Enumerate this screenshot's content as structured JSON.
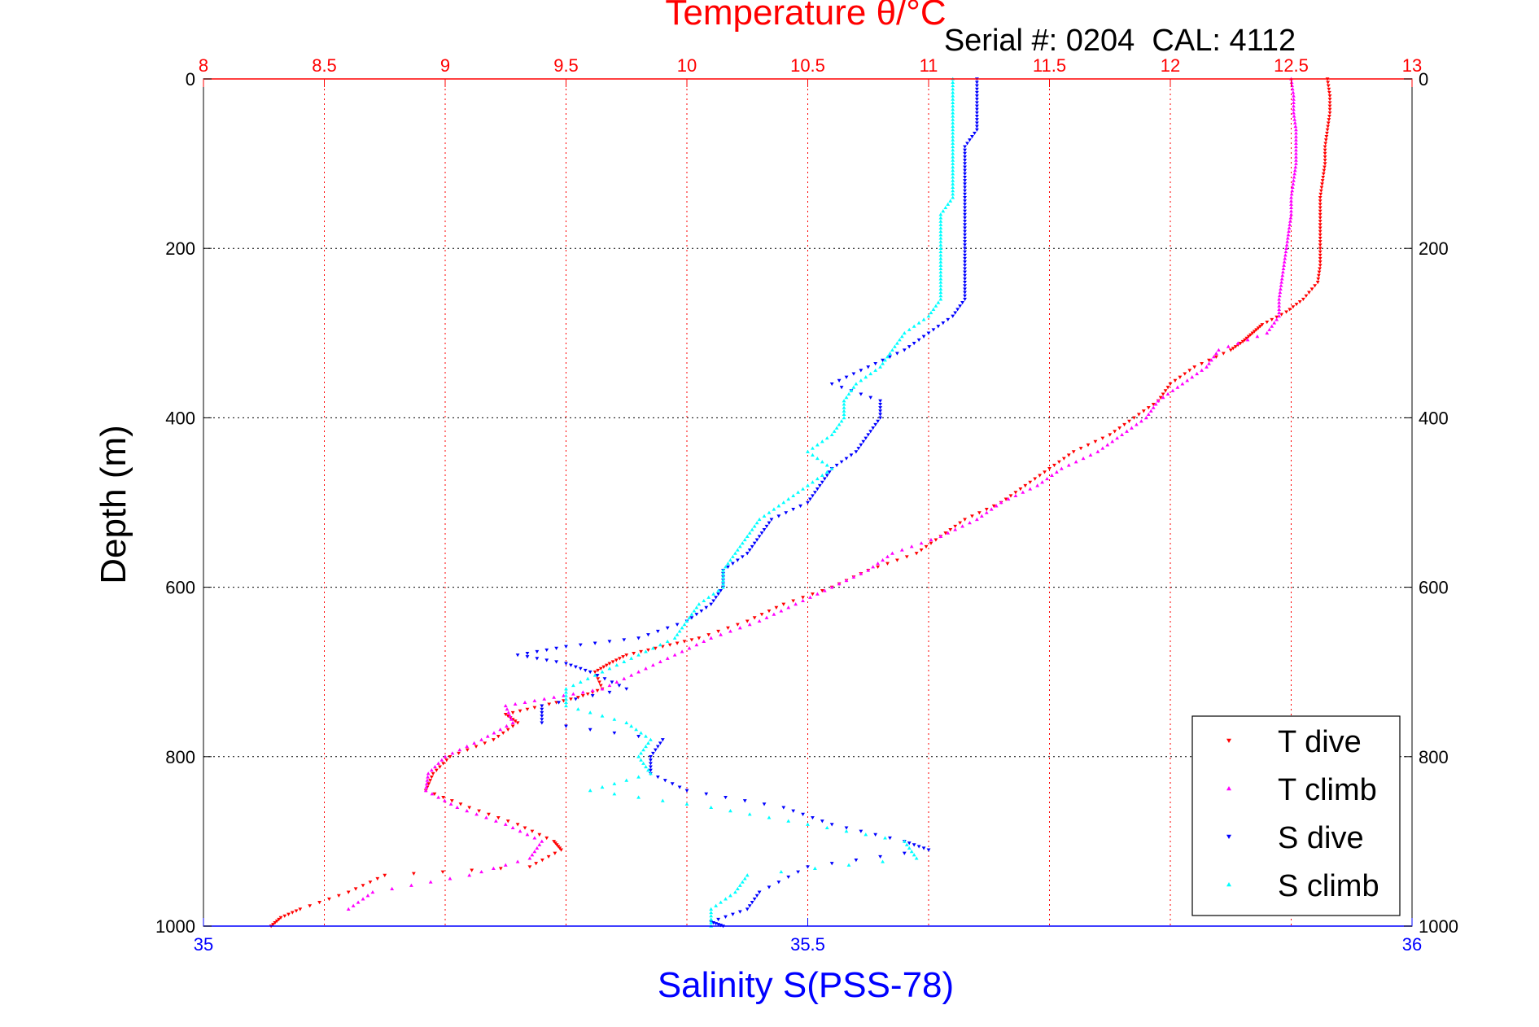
{
  "chart_data": {
    "type": "scatter",
    "title": "Temperature θ/°C",
    "subtitle": "Serial #: 0204  CAL: 4112",
    "ylabel": "Depth (m)",
    "xlabel": "Salinity S(PSS-78)",
    "y": {
      "range": [
        0,
        1000
      ],
      "reversed": true,
      "ticks": [
        0,
        200,
        400,
        600,
        800,
        1000
      ]
    },
    "x_top": {
      "range": [
        8,
        13
      ],
      "ticks": [
        8,
        8.5,
        9,
        9.5,
        10,
        10.5,
        11,
        11.5,
        12,
        12.5,
        13
      ]
    },
    "x_bottom": {
      "range": [
        35,
        36
      ],
      "ticks": [
        35,
        35.5,
        36
      ]
    },
    "grid": true,
    "legend_position": "bottom-right",
    "colors": {
      "temperature_axis": "#ff0000",
      "salinity_axis": "#0000ff",
      "grid": "#000000"
    },
    "series": [
      {
        "name": "T dive",
        "axis": "temperature",
        "color": "#ff0000",
        "marker": "triangle-down",
        "points": [
          [
            0,
            12.65
          ],
          [
            20,
            12.66
          ],
          [
            40,
            12.66
          ],
          [
            60,
            12.65
          ],
          [
            80,
            12.64
          ],
          [
            100,
            12.64
          ],
          [
            120,
            12.63
          ],
          [
            140,
            12.62
          ],
          [
            160,
            12.62
          ],
          [
            180,
            12.62
          ],
          [
            200,
            12.62
          ],
          [
            220,
            12.62
          ],
          [
            240,
            12.61
          ],
          [
            260,
            12.55
          ],
          [
            275,
            12.48
          ],
          [
            290,
            12.38
          ],
          [
            300,
            12.34
          ],
          [
            310,
            12.3
          ],
          [
            320,
            12.25
          ],
          [
            340,
            12.1
          ],
          [
            360,
            12.0
          ],
          [
            380,
            11.95
          ],
          [
            400,
            11.85
          ],
          [
            420,
            11.75
          ],
          [
            440,
            11.6
          ],
          [
            460,
            11.5
          ],
          [
            480,
            11.4
          ],
          [
            500,
            11.3
          ],
          [
            520,
            11.15
          ],
          [
            540,
            11.05
          ],
          [
            560,
            10.95
          ],
          [
            580,
            10.75
          ],
          [
            600,
            10.6
          ],
          [
            620,
            10.4
          ],
          [
            640,
            10.25
          ],
          [
            660,
            10.05
          ],
          [
            670,
            9.9
          ],
          [
            680,
            9.75
          ],
          [
            690,
            9.68
          ],
          [
            700,
            9.62
          ],
          [
            720,
            9.65
          ],
          [
            730,
            9.55
          ],
          [
            740,
            9.4
          ],
          [
            750,
            9.25
          ],
          [
            760,
            9.3
          ],
          [
            780,
            9.2
          ],
          [
            800,
            9.02
          ],
          [
            820,
            8.95
          ],
          [
            840,
            8.92
          ],
          [
            860,
            9.1
          ],
          [
            880,
            9.3
          ],
          [
            900,
            9.45
          ],
          [
            910,
            9.48
          ],
          [
            930,
            9.35
          ],
          [
            940,
            8.75
          ],
          [
            960,
            8.6
          ],
          [
            980,
            8.4
          ],
          [
            990,
            8.32
          ],
          [
            1000,
            8.28
          ]
        ]
      },
      {
        "name": "T climb",
        "axis": "temperature",
        "color": "#ff00ff",
        "marker": "triangle-up",
        "points": [
          [
            0,
            12.5
          ],
          [
            20,
            12.51
          ],
          [
            40,
            12.51
          ],
          [
            60,
            12.52
          ],
          [
            80,
            12.52
          ],
          [
            100,
            12.52
          ],
          [
            120,
            12.51
          ],
          [
            140,
            12.5
          ],
          [
            160,
            12.5
          ],
          [
            180,
            12.49
          ],
          [
            200,
            12.48
          ],
          [
            220,
            12.47
          ],
          [
            240,
            12.46
          ],
          [
            260,
            12.45
          ],
          [
            280,
            12.45
          ],
          [
            300,
            12.4
          ],
          [
            320,
            12.2
          ],
          [
            340,
            12.15
          ],
          [
            360,
            12.05
          ],
          [
            380,
            11.95
          ],
          [
            400,
            11.9
          ],
          [
            420,
            11.8
          ],
          [
            440,
            11.7
          ],
          [
            460,
            11.55
          ],
          [
            480,
            11.45
          ],
          [
            500,
            11.3
          ],
          [
            520,
            11.2
          ],
          [
            540,
            11.05
          ],
          [
            560,
            10.85
          ],
          [
            580,
            10.75
          ],
          [
            600,
            10.6
          ],
          [
            620,
            10.45
          ],
          [
            640,
            10.3
          ],
          [
            660,
            10.1
          ],
          [
            680,
            9.95
          ],
          [
            700,
            9.8
          ],
          [
            720,
            9.65
          ],
          [
            730,
            9.45
          ],
          [
            740,
            9.25
          ],
          [
            760,
            9.28
          ],
          [
            780,
            9.15
          ],
          [
            800,
            9.0
          ],
          [
            820,
            8.93
          ],
          [
            840,
            8.92
          ],
          [
            860,
            9.05
          ],
          [
            880,
            9.25
          ],
          [
            900,
            9.4
          ],
          [
            920,
            9.35
          ],
          [
            940,
            9.1
          ],
          [
            960,
            8.7
          ],
          [
            980,
            8.6
          ]
        ]
      },
      {
        "name": "S dive",
        "axis": "salinity",
        "color": "#0000ff",
        "marker": "triangle-down",
        "points": [
          [
            0,
            35.64
          ],
          [
            20,
            35.64
          ],
          [
            40,
            35.64
          ],
          [
            60,
            35.64
          ],
          [
            80,
            35.63
          ],
          [
            100,
            35.63
          ],
          [
            120,
            35.63
          ],
          [
            140,
            35.63
          ],
          [
            160,
            35.63
          ],
          [
            180,
            35.63
          ],
          [
            200,
            35.63
          ],
          [
            220,
            35.63
          ],
          [
            240,
            35.63
          ],
          [
            260,
            35.63
          ],
          [
            280,
            35.62
          ],
          [
            300,
            35.6
          ],
          [
            320,
            35.58
          ],
          [
            340,
            35.55
          ],
          [
            360,
            35.52
          ],
          [
            380,
            35.56
          ],
          [
            400,
            35.56
          ],
          [
            420,
            35.55
          ],
          [
            440,
            35.54
          ],
          [
            460,
            35.52
          ],
          [
            480,
            35.51
          ],
          [
            500,
            35.5
          ],
          [
            520,
            35.47
          ],
          [
            540,
            35.46
          ],
          [
            560,
            35.45
          ],
          [
            580,
            35.43
          ],
          [
            600,
            35.43
          ],
          [
            620,
            35.42
          ],
          [
            640,
            35.4
          ],
          [
            660,
            35.36
          ],
          [
            670,
            35.3
          ],
          [
            680,
            35.26
          ],
          [
            690,
            35.3
          ],
          [
            700,
            35.32
          ],
          [
            720,
            35.35
          ],
          [
            740,
            35.28
          ],
          [
            760,
            35.28
          ],
          [
            780,
            35.38
          ],
          [
            800,
            35.37
          ],
          [
            820,
            35.37
          ],
          [
            840,
            35.4
          ],
          [
            860,
            35.48
          ],
          [
            880,
            35.52
          ],
          [
            900,
            35.58
          ],
          [
            910,
            35.6
          ],
          [
            930,
            35.5
          ],
          [
            960,
            35.46
          ],
          [
            980,
            35.45
          ],
          [
            995,
            35.42
          ],
          [
            1000,
            35.43
          ]
        ]
      },
      {
        "name": "S climb",
        "axis": "salinity",
        "color": "#00ffff",
        "marker": "triangle-up",
        "points": [
          [
            0,
            35.62
          ],
          [
            20,
            35.62
          ],
          [
            40,
            35.62
          ],
          [
            60,
            35.62
          ],
          [
            80,
            35.62
          ],
          [
            100,
            35.62
          ],
          [
            120,
            35.62
          ],
          [
            140,
            35.62
          ],
          [
            160,
            35.61
          ],
          [
            180,
            35.61
          ],
          [
            200,
            35.61
          ],
          [
            220,
            35.61
          ],
          [
            240,
            35.61
          ],
          [
            260,
            35.61
          ],
          [
            280,
            35.6
          ],
          [
            300,
            35.58
          ],
          [
            320,
            35.57
          ],
          [
            340,
            35.56
          ],
          [
            360,
            35.54
          ],
          [
            380,
            35.53
          ],
          [
            400,
            35.53
          ],
          [
            420,
            35.52
          ],
          [
            440,
            35.5
          ],
          [
            460,
            35.52
          ],
          [
            480,
            35.5
          ],
          [
            500,
            35.48
          ],
          [
            520,
            35.46
          ],
          [
            540,
            35.45
          ],
          [
            560,
            35.44
          ],
          [
            580,
            35.43
          ],
          [
            600,
            35.43
          ],
          [
            620,
            35.41
          ],
          [
            640,
            35.4
          ],
          [
            660,
            35.39
          ],
          [
            680,
            35.36
          ],
          [
            700,
            35.33
          ],
          [
            720,
            35.3
          ],
          [
            740,
            35.3
          ],
          [
            760,
            35.35
          ],
          [
            780,
            35.37
          ],
          [
            800,
            35.36
          ],
          [
            820,
            35.37
          ],
          [
            840,
            35.32
          ],
          [
            860,
            35.42
          ],
          [
            880,
            35.5
          ],
          [
            900,
            35.58
          ],
          [
            920,
            35.59
          ],
          [
            940,
            35.45
          ],
          [
            960,
            35.44
          ],
          [
            980,
            35.42
          ],
          [
            1000,
            35.42
          ]
        ]
      }
    ]
  }
}
